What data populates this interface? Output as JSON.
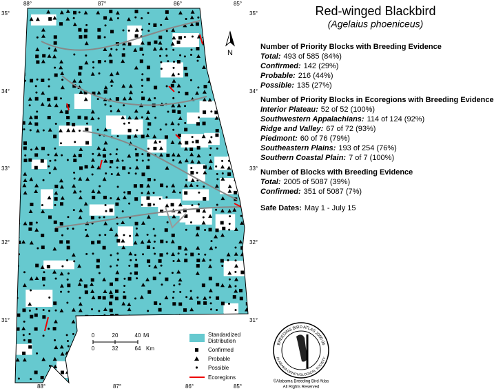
{
  "title": "Red-winged Blackbird",
  "subtitle": "(Agelaius phoeniceus)",
  "sections": [
    {
      "heading": "Number of Priority Blocks with Breeding Evidence",
      "rows": [
        {
          "label": "Total:",
          "value": "493 of 585 (84%)"
        },
        {
          "label": "Confirmed:",
          "value": "142 (29%)"
        },
        {
          "label": "Probable:",
          "value": "216 (44%)"
        },
        {
          "label": "Possible:",
          "value": "135 (27%)"
        }
      ]
    },
    {
      "heading": "Number of Priority Blocks in Ecoregions with Breeding Evidence",
      "rows": [
        {
          "label": "Interior Plateau:",
          "value": "52 of 52 (100%)"
        },
        {
          "label": "Southwestern Appalachians:",
          "value": "114 of 124 (92%)"
        },
        {
          "label": "Ridge and Valley:",
          "value": "67 of 72 (93%)"
        },
        {
          "label": "Piedmont:",
          "value": "60 of 76 (79%)"
        },
        {
          "label": "Southeastern Plains:",
          "value": "193 of 254 (76%)"
        },
        {
          "label": "Southern Coastal Plain:",
          "value": "7 of 7 (100%)"
        }
      ]
    },
    {
      "heading": "Number of Blocks with Breeding Evidence",
      "rows": [
        {
          "label": "Total:",
          "value": "2005 of 5087 (39%)"
        },
        {
          "label": "Confirmed:",
          "value": "351 of 5087 (7%)"
        }
      ]
    }
  ],
  "safe_dates": {
    "label": "Safe Dates:",
    "value": "May 1 - July 15"
  },
  "map": {
    "north": "N",
    "lat_labels": [
      "35°",
      "34°",
      "33°",
      "32°",
      "31°"
    ],
    "lon_labels": [
      "88°",
      "87°",
      "86°",
      "85°"
    ],
    "scale": {
      "miles": [
        "0",
        "20",
        "40"
      ],
      "mi_unit": "Mi",
      "km": [
        "0",
        "32",
        "64"
      ],
      "km_unit": "Km"
    },
    "legend": {
      "distribution": [
        "Standardized",
        "Distribution"
      ],
      "confirmed": "Confirmed",
      "probable": "Probable",
      "possible": "Possible",
      "ecoregions": "Ecoregions"
    },
    "logo": {
      "ring_top": "BREEDING BIRD ATLAS 2000-06",
      "ring_bottom": "ALABAMA ORNITHOLOGICAL SOCIETY",
      "credit": "©Alabama Breeding Bird Atlas",
      "rights": "All Rights Reserved"
    }
  }
}
